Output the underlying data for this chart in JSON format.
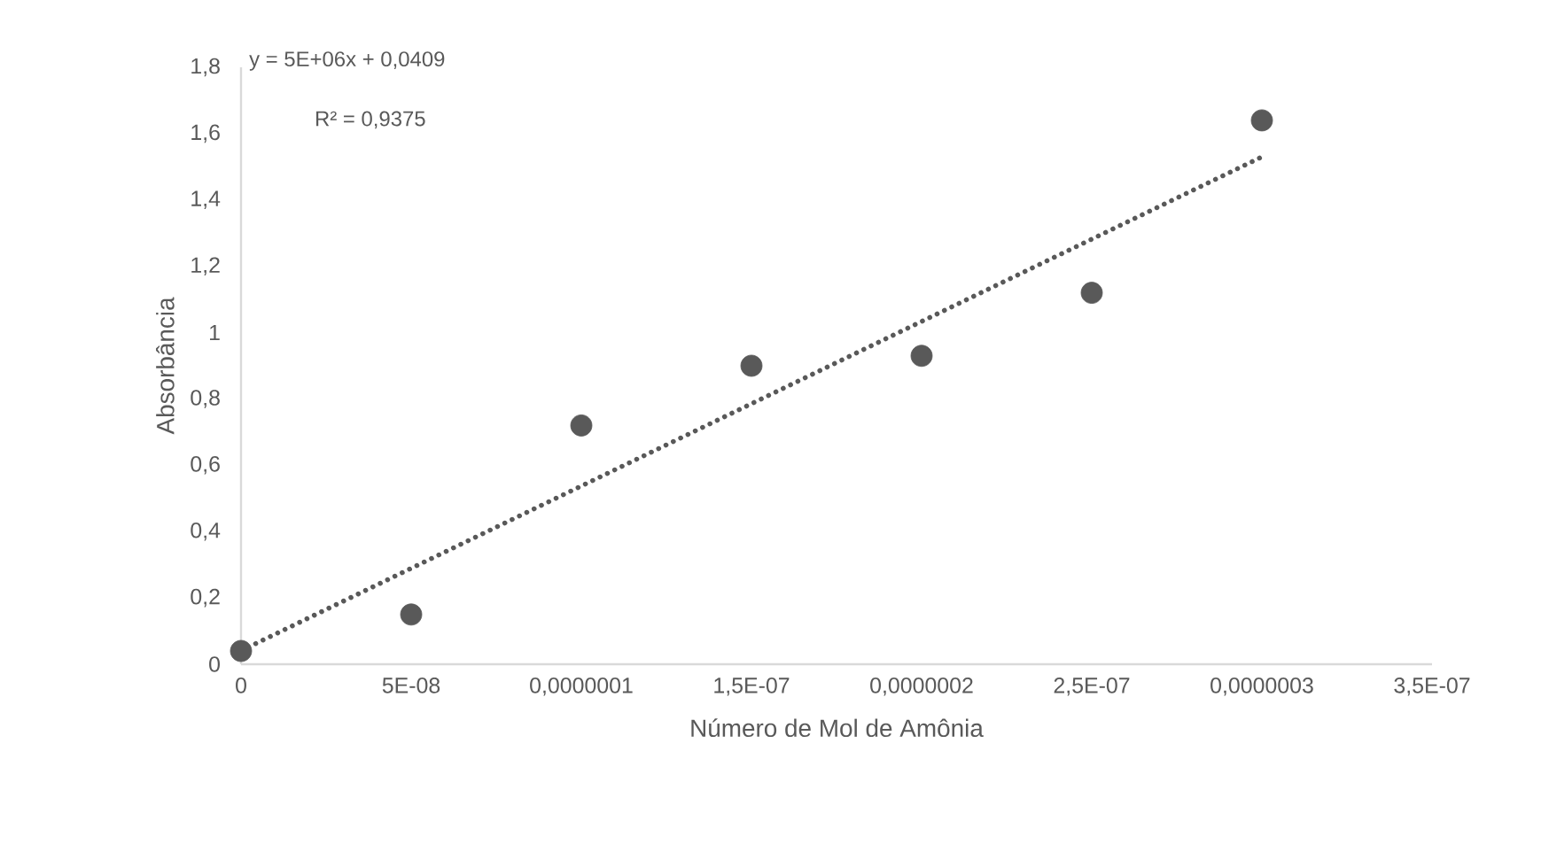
{
  "chart_data": {
    "type": "scatter",
    "xlabel": "Número de Mol de Amônia",
    "ylabel": "Absorbância",
    "x": [
      0,
      5e-08,
      1e-07,
      1.5e-07,
      2e-07,
      2.5e-07,
      3e-07
    ],
    "series": [
      {
        "type": "scatter",
        "color": "#595959",
        "marker": "circle",
        "values": [
          0.04,
          0.15,
          0.72,
          0.9,
          0.93,
          1.12,
          1.64
        ]
      },
      {
        "type": "line",
        "color": "#595959",
        "line_style": "dotted",
        "marker": "none",
        "x": [
          0,
          3e-07
        ],
        "values": [
          0.041,
          1.53
        ]
      }
    ],
    "xlim": [
      0,
      3.5e-07
    ],
    "xticks": [
      0,
      {
        "value": 5e-08,
        "label": "5E-08"
      },
      {
        "value": 1e-07,
        "label": "0,0000001"
      },
      {
        "value": 1.5e-07,
        "label": "1,5E-07"
      },
      {
        "value": 2e-07,
        "label": "0,0000002"
      },
      {
        "value": 2.5e-07,
        "label": "2,5E-07"
      },
      {
        "value": 3e-07,
        "label": "0,0000003"
      },
      {
        "value": 3.5e-07,
        "label": "3,5E-07"
      }
    ],
    "ylim": [
      0,
      1.8
    ],
    "yticks": [
      0,
      {
        "value": 0.2,
        "label": "0,2"
      },
      {
        "value": 0.4,
        "label": "0,4"
      },
      {
        "value": 0.6,
        "label": "0,6"
      },
      {
        "value": 0.8,
        "label": "0,8"
      },
      1,
      {
        "value": 1.2,
        "label": "1,2"
      },
      {
        "value": 1.4,
        "label": "1,4"
      },
      {
        "value": 1.6,
        "label": "1,6"
      },
      {
        "value": 1.8,
        "label": "1,8"
      }
    ],
    "annotations": [
      "y = 5E+06x + 0,0409",
      "R² = 0,9375"
    ],
    "grid": false
  }
}
